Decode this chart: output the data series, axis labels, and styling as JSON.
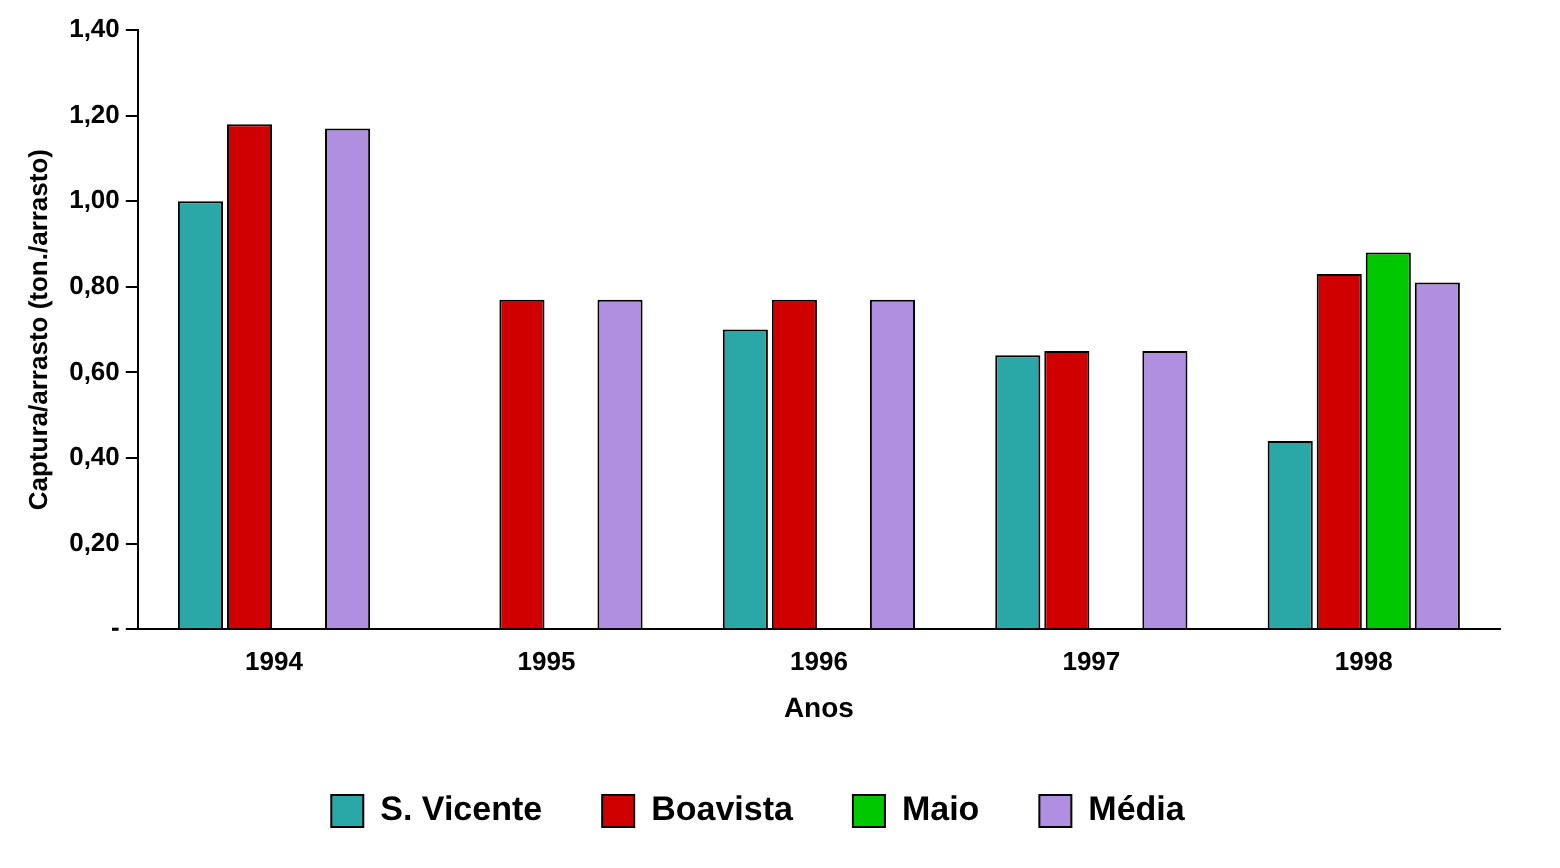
{
  "chart_data": {
    "type": "bar",
    "xlabel": "Anos",
    "ylabel": "Captura/arrasto (ton./arrasto)",
    "categories": [
      "1994",
      "1995",
      "1996",
      "1997",
      "1998"
    ],
    "series": [
      {
        "name": "S. Vicente",
        "color": "#2aa8a8",
        "values": [
          1.0,
          null,
          0.7,
          0.64,
          0.44
        ]
      },
      {
        "name": "Boavista",
        "color": "#d00000",
        "values": [
          1.18,
          0.77,
          0.77,
          0.65,
          0.83
        ]
      },
      {
        "name": "Maio",
        "color": "#00c800",
        "values": [
          null,
          null,
          null,
          null,
          0.88
        ]
      },
      {
        "name": "Média",
        "color": "#b08ee0",
        "values": [
          1.17,
          0.77,
          0.77,
          0.65,
          0.81
        ]
      }
    ],
    "ylim": [
      0,
      1.4
    ],
    "yticks": [
      {
        "value": 0,
        "label": "-"
      },
      {
        "value": 0.2,
        "label": "0,20"
      },
      {
        "value": 0.4,
        "label": "0,40"
      },
      {
        "value": 0.6,
        "label": "0,60"
      },
      {
        "value": 0.8,
        "label": "0,80"
      },
      {
        "value": 1.0,
        "label": "1,00"
      },
      {
        "value": 1.2,
        "label": "1,20"
      },
      {
        "value": 1.4,
        "label": "1,40"
      }
    ],
    "grid": false,
    "legend": "bottom"
  }
}
